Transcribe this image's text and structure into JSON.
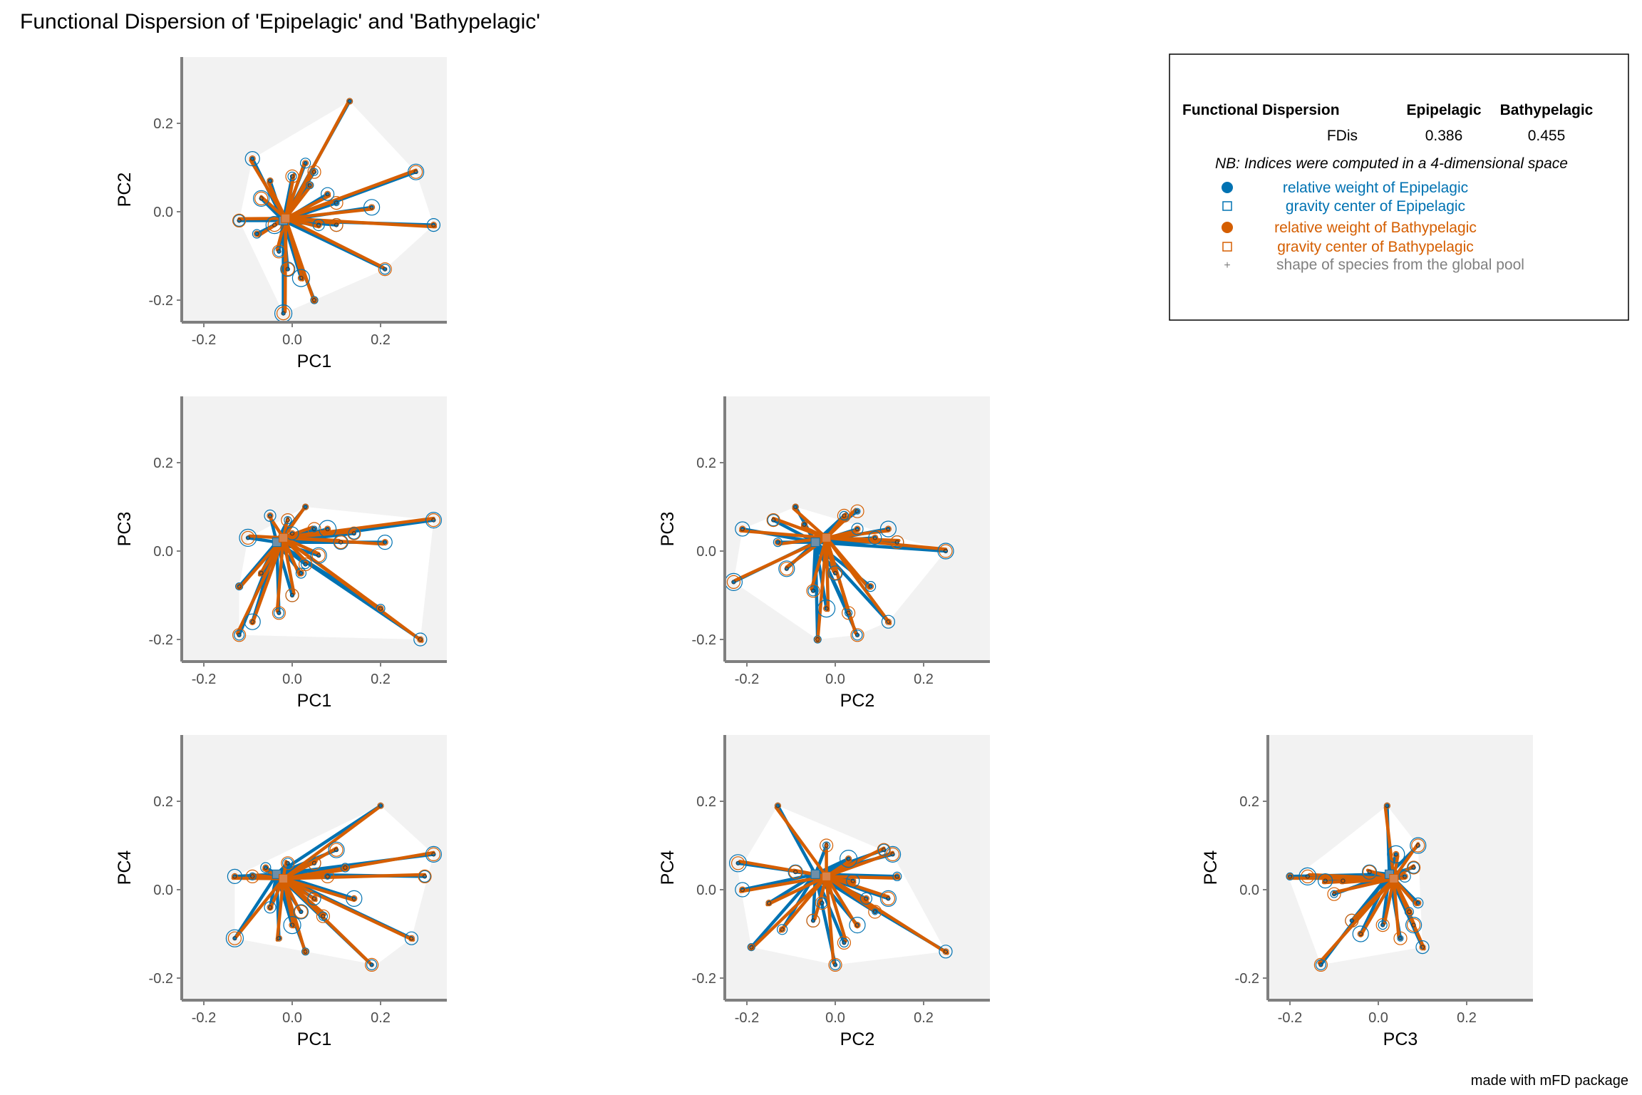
{
  "title": "Functional Dispersion of 'Epipelagic' and 'Bathypelagic'",
  "caption": "made with mFD package",
  "colors": {
    "epipelagic": "#0072B2",
    "bathypelagic": "#D55E00",
    "panel_bg": "#F2F2F2",
    "hull": "#FFFFFF",
    "axis": "#7F7F7F",
    "pool": "#808080"
  },
  "legend": {
    "header_label": "Functional Dispersion",
    "col1": "Epipelagic",
    "col2": "Bathypelagic",
    "row_label": "FDis",
    "val1": "0.386",
    "val2": "0.455",
    "note": "NB: Indices were computed in a 4-dimensional space",
    "items": [
      {
        "symbol": "dot",
        "color": "epipelagic",
        "label": "relative weight of Epipelagic"
      },
      {
        "symbol": "square",
        "color": "epipelagic",
        "label": "gravity center of Epipelagic"
      },
      {
        "symbol": "dot",
        "color": "bathypelagic",
        "label": "relative weight of Bathypelagic"
      },
      {
        "symbol": "square",
        "color": "bathypelagic",
        "label": "gravity center of Bathypelagic"
      },
      {
        "symbol": "plus",
        "color": "pool",
        "label": "shape of species from the global pool"
      }
    ]
  },
  "chart_data": [
    {
      "type": "scatter",
      "xlabel": "PC1",
      "ylabel": "PC2",
      "xlim": [
        -0.25,
        0.35
      ],
      "ylim": [
        -0.25,
        0.35
      ],
      "xticks": [
        "-0.2",
        "0.0",
        "0.2"
      ],
      "yticks": [
        "-0.2",
        "0.0",
        "0.2"
      ],
      "tick_values": [
        -0.2,
        0.0,
        0.2
      ],
      "hull": [
        [
          0.13,
          0.25
        ],
        [
          0.28,
          0.09
        ],
        [
          0.32,
          -0.03
        ],
        [
          0.21,
          -0.13
        ],
        [
          0.05,
          -0.2
        ],
        [
          -0.02,
          -0.23
        ],
        [
          -0.12,
          -0.02
        ],
        [
          -0.09,
          0.12
        ]
      ],
      "center_epipelagic": [
        -0.02,
        -0.02
      ],
      "center_bathypelagic": [
        -0.015,
        -0.015
      ],
      "species": [
        [
          0.13,
          0.25
        ],
        [
          0.28,
          0.09
        ],
        [
          0.32,
          -0.03
        ],
        [
          0.21,
          -0.13
        ],
        [
          0.05,
          -0.2
        ],
        [
          -0.02,
          -0.23
        ],
        [
          -0.09,
          0.12
        ],
        [
          -0.12,
          -0.02
        ],
        [
          -0.08,
          -0.05
        ],
        [
          0.1,
          0.02
        ],
        [
          0.18,
          0.01
        ],
        [
          0.1,
          -0.03
        ],
        [
          0.03,
          0.11
        ],
        [
          0.05,
          0.09
        ],
        [
          0.02,
          -0.15
        ],
        [
          -0.01,
          -0.13
        ],
        [
          0.06,
          -0.03
        ],
        [
          0.0,
          0.08
        ],
        [
          -0.05,
          0.07
        ],
        [
          -0.07,
          0.03
        ],
        [
          0.08,
          0.04
        ],
        [
          -0.03,
          -0.09
        ],
        [
          0.04,
          0.06
        ],
        [
          -0.04,
          -0.03
        ]
      ]
    },
    {
      "type": "scatter",
      "xlabel": "PC1",
      "ylabel": "PC3",
      "xlim": [
        -0.25,
        0.35
      ],
      "ylim": [
        -0.25,
        0.35
      ],
      "xticks": [
        "-0.2",
        "0.0",
        "0.2"
      ],
      "yticks": [
        "-0.2",
        "0.0",
        "0.2"
      ],
      "tick_values": [
        -0.2,
        0.0,
        0.2
      ],
      "hull": [
        [
          0.03,
          0.1
        ],
        [
          0.32,
          0.07
        ],
        [
          0.29,
          -0.2
        ],
        [
          -0.12,
          -0.19
        ],
        [
          -0.12,
          -0.08
        ],
        [
          -0.1,
          0.03
        ]
      ],
      "center_epipelagic": [
        -0.035,
        0.02
      ],
      "center_bathypelagic": [
        -0.02,
        0.03
      ],
      "species": [
        [
          0.03,
          0.1
        ],
        [
          0.32,
          0.07
        ],
        [
          0.29,
          -0.2
        ],
        [
          -0.12,
          -0.19
        ],
        [
          -0.12,
          -0.08
        ],
        [
          -0.1,
          0.03
        ],
        [
          0.21,
          0.02
        ],
        [
          0.14,
          0.04
        ],
        [
          0.2,
          -0.13
        ],
        [
          0.05,
          0.05
        ],
        [
          -0.09,
          -0.16
        ],
        [
          0.0,
          -0.1
        ],
        [
          0.02,
          -0.05
        ],
        [
          -0.01,
          0.07
        ],
        [
          0.08,
          0.05
        ],
        [
          0.11,
          0.02
        ],
        [
          -0.05,
          0.08
        ],
        [
          0.03,
          -0.03
        ],
        [
          -0.07,
          -0.05
        ],
        [
          0.06,
          -0.01
        ],
        [
          0.0,
          0.04
        ],
        [
          -0.03,
          -0.14
        ]
      ]
    },
    {
      "type": "scatter",
      "xlabel": "PC2",
      "ylabel": "PC3",
      "xlim": [
        -0.25,
        0.35
      ],
      "ylim": [
        -0.25,
        0.35
      ],
      "xticks": [
        "-0.2",
        "0.0",
        "0.2"
      ],
      "yticks": [
        "-0.2",
        "0.0",
        "0.2"
      ],
      "tick_values": [
        -0.2,
        0.0,
        0.2
      ],
      "hull": [
        [
          -0.09,
          0.1
        ],
        [
          0.25,
          0.0
        ],
        [
          0.12,
          -0.16
        ],
        [
          0.05,
          -0.19
        ],
        [
          -0.04,
          -0.2
        ],
        [
          -0.23,
          -0.07
        ],
        [
          -0.21,
          0.05
        ]
      ],
      "center_epipelagic": [
        -0.045,
        0.02
      ],
      "center_bathypelagic": [
        -0.02,
        0.03
      ],
      "species": [
        [
          -0.09,
          0.1
        ],
        [
          0.25,
          0.0
        ],
        [
          0.12,
          -0.16
        ],
        [
          0.05,
          -0.19
        ],
        [
          -0.04,
          -0.2
        ],
        [
          -0.23,
          -0.07
        ],
        [
          -0.21,
          0.05
        ],
        [
          -0.14,
          0.07
        ],
        [
          -0.13,
          0.02
        ],
        [
          0.05,
          0.09
        ],
        [
          0.12,
          0.05
        ],
        [
          0.14,
          0.02
        ],
        [
          0.08,
          -0.08
        ],
        [
          0.03,
          -0.14
        ],
        [
          -0.02,
          -0.13
        ],
        [
          0.0,
          -0.05
        ],
        [
          0.05,
          0.05
        ],
        [
          0.02,
          0.08
        ],
        [
          -0.07,
          0.06
        ],
        [
          -0.11,
          -0.04
        ],
        [
          0.09,
          0.03
        ],
        [
          -0.05,
          -0.09
        ]
      ]
    },
    {
      "type": "scatter",
      "xlabel": "PC1",
      "ylabel": "PC4",
      "xlim": [
        -0.25,
        0.35
      ],
      "ylim": [
        -0.25,
        0.35
      ],
      "xticks": [
        "-0.2",
        "0.0",
        "0.2"
      ],
      "yticks": [
        "-0.2",
        "0.0",
        "0.2"
      ],
      "tick_values": [
        -0.2,
        0.0,
        0.2
      ],
      "hull": [
        [
          0.2,
          0.19
        ],
        [
          0.32,
          0.08
        ],
        [
          0.27,
          -0.11
        ],
        [
          0.19,
          -0.17
        ],
        [
          0.03,
          -0.14
        ],
        [
          -0.13,
          -0.11
        ],
        [
          -0.13,
          0.03
        ]
      ],
      "center_epipelagic": [
        -0.035,
        0.035
      ],
      "center_bathypelagic": [
        -0.02,
        0.025
      ],
      "species": [
        [
          0.2,
          0.19
        ],
        [
          0.32,
          0.08
        ],
        [
          0.27,
          -0.11
        ],
        [
          0.18,
          -0.17
        ],
        [
          0.03,
          -0.14
        ],
        [
          -0.13,
          -0.11
        ],
        [
          -0.13,
          0.03
        ],
        [
          0.3,
          0.03
        ],
        [
          0.12,
          0.05
        ],
        [
          0.08,
          0.03
        ],
        [
          0.14,
          -0.02
        ],
        [
          0.05,
          0.06
        ],
        [
          -0.06,
          0.05
        ],
        [
          -0.09,
          0.03
        ],
        [
          0.0,
          -0.08
        ],
        [
          0.02,
          -0.05
        ],
        [
          -0.05,
          -0.04
        ],
        [
          0.07,
          -0.06
        ],
        [
          -0.03,
          -0.11
        ],
        [
          0.1,
          0.09
        ],
        [
          0.05,
          -0.02
        ],
        [
          -0.01,
          0.06
        ]
      ]
    },
    {
      "type": "scatter",
      "xlabel": "PC2",
      "ylabel": "PC4",
      "xlim": [
        -0.25,
        0.35
      ],
      "ylim": [
        -0.25,
        0.35
      ],
      "xticks": [
        "-0.2",
        "0.0",
        "0.2"
      ],
      "yticks": [
        "-0.2",
        "0.0",
        "0.2"
      ],
      "tick_values": [
        -0.2,
        0.0,
        0.2
      ],
      "hull": [
        [
          -0.13,
          0.19
        ],
        [
          0.13,
          0.08
        ],
        [
          0.25,
          -0.14
        ],
        [
          0.0,
          -0.17
        ],
        [
          -0.19,
          -0.13
        ],
        [
          -0.22,
          0.04
        ]
      ],
      "center_epipelagic": [
        -0.045,
        0.035
      ],
      "center_bathypelagic": [
        -0.02,
        0.03
      ],
      "species": [
        [
          -0.13,
          0.19
        ],
        [
          0.13,
          0.08
        ],
        [
          0.25,
          -0.14
        ],
        [
          0.0,
          -0.17
        ],
        [
          -0.19,
          -0.13
        ],
        [
          -0.22,
          0.06
        ],
        [
          -0.21,
          0.0
        ],
        [
          0.11,
          0.09
        ],
        [
          0.14,
          0.03
        ],
        [
          0.09,
          -0.05
        ],
        [
          0.05,
          -0.08
        ],
        [
          -0.05,
          -0.07
        ],
        [
          -0.12,
          -0.09
        ],
        [
          -0.02,
          0.1
        ],
        [
          0.03,
          0.07
        ],
        [
          -0.09,
          0.04
        ],
        [
          0.07,
          -0.02
        ],
        [
          0.02,
          -0.12
        ],
        [
          -0.15,
          -0.03
        ],
        [
          0.12,
          -0.02
        ],
        [
          0.04,
          0.02
        ],
        [
          -0.03,
          -0.03
        ]
      ]
    },
    {
      "type": "scatter",
      "xlabel": "PC3",
      "ylabel": "PC4",
      "xlim": [
        -0.25,
        0.35
      ],
      "ylim": [
        -0.25,
        0.35
      ],
      "xticks": [
        "-0.2",
        "0.0",
        "0.2"
      ],
      "yticks": [
        "-0.2",
        "0.0",
        "0.2"
      ],
      "tick_values": [
        -0.2,
        0.0,
        0.2
      ],
      "hull": [
        [
          0.02,
          0.19
        ],
        [
          0.09,
          0.1
        ],
        [
          0.1,
          -0.13
        ],
        [
          -0.13,
          -0.17
        ],
        [
          -0.2,
          0.02
        ],
        [
          -0.12,
          0.08
        ]
      ],
      "center_epipelagic": [
        0.025,
        0.035
      ],
      "center_bathypelagic": [
        0.035,
        0.025
      ],
      "species": [
        [
          0.02,
          0.19
        ],
        [
          0.09,
          0.1
        ],
        [
          0.1,
          -0.13
        ],
        [
          -0.13,
          -0.17
        ],
        [
          -0.2,
          0.03
        ],
        [
          -0.16,
          0.03
        ],
        [
          -0.12,
          0.02
        ],
        [
          0.08,
          0.05
        ],
        [
          0.07,
          -0.05
        ],
        [
          0.05,
          -0.11
        ],
        [
          -0.04,
          -0.1
        ],
        [
          -0.06,
          -0.07
        ],
        [
          0.09,
          -0.03
        ],
        [
          -0.1,
          -0.01
        ],
        [
          0.04,
          0.08
        ],
        [
          -0.02,
          0.04
        ],
        [
          0.06,
          0.03
        ],
        [
          0.01,
          -0.08
        ],
        [
          -0.08,
          0.02
        ],
        [
          0.08,
          -0.08
        ]
      ]
    }
  ]
}
